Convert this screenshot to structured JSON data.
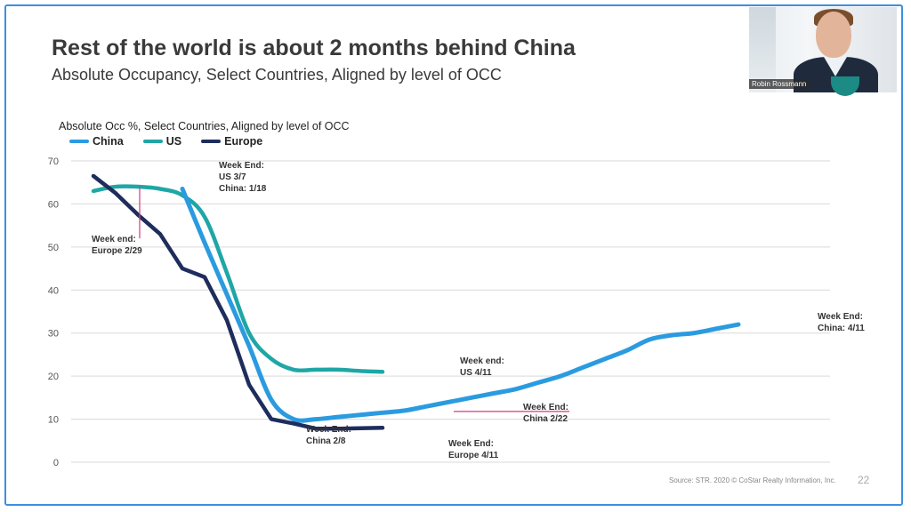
{
  "slide": {
    "title": "Rest of the world is about 2 months behind China",
    "subtitle": "Absolute Occupancy, Select Countries, Aligned by level of OCC",
    "source": "Source: STR. 2020 © CoStar Realty Information, Inc.",
    "page_number": "22"
  },
  "webcam": {
    "name": "Robin Rossmann"
  },
  "colors": {
    "china": "#2b9be0",
    "us": "#1fa6a6",
    "europe": "#1e2d5c",
    "marker": "#d63a7d",
    "axis_text": "#555555",
    "grid": "#d9d9d9"
  },
  "chart_data": {
    "type": "line",
    "title": "Absolute Occ %, Select Countries, Aligned by level of OCC",
    "xlabel": "",
    "ylabel": "",
    "ylim": [
      0,
      70
    ],
    "y_ticks": [
      "0",
      "10",
      "20",
      "30",
      "40",
      "50",
      "60",
      "70"
    ],
    "grid": "horizontal",
    "legend_position": "top-left",
    "x_range": [
      0,
      33
    ],
    "series": [
      {
        "name": "China",
        "x": [
          4,
          5,
          6,
          7,
          8,
          9,
          10,
          11,
          12,
          13,
          14,
          15,
          16,
          17,
          18,
          19,
          20,
          21,
          22,
          23,
          24,
          25,
          26,
          27,
          28,
          29,
          30,
          31,
          32
        ],
        "values": [
          63.5,
          51,
          39,
          27,
          14.5,
          10,
          10,
          10.5,
          11,
          11.5,
          12,
          13,
          14,
          15,
          16,
          17,
          18.5,
          20,
          22,
          24,
          26,
          28.5,
          29.5,
          30,
          31,
          32,
          null,
          null,
          null
        ]
      },
      {
        "name": "US",
        "x": [
          0,
          1,
          2,
          3,
          4,
          5,
          6,
          7,
          8,
          9,
          10,
          11,
          12,
          13,
          14
        ],
        "values": [
          63,
          64,
          64,
          63.5,
          62,
          57,
          44,
          30,
          24,
          21.5,
          21.5,
          21.5,
          21.2,
          21,
          null
        ]
      },
      {
        "name": "Europe",
        "x": [
          0,
          1,
          2,
          3,
          4,
          5,
          6,
          7,
          8,
          9,
          10,
          11,
          12,
          13
        ],
        "values": [
          66.5,
          62.5,
          57.5,
          53,
          45,
          43,
          33,
          18,
          10,
          9,
          7.8,
          7.8,
          7.9,
          8
        ]
      }
    ],
    "annotations": [
      {
        "label_lines": [
          "Week end:",
          "Europe  2/29"
        ]
      },
      {
        "label_lines": [
          "Week End:",
          "US 3/7",
          "China: 1/18"
        ]
      },
      {
        "label_lines": [
          "Week End:",
          "China 2/8"
        ]
      },
      {
        "label_lines": [
          "Week end:",
          "US 4/11"
        ]
      },
      {
        "label_lines": [
          "Week End:",
          "China 2/22"
        ]
      },
      {
        "label_lines": [
          "Week End:",
          "Europe 4/11"
        ]
      },
      {
        "label_lines": [
          "Week End:",
          "China: 4/11"
        ]
      }
    ]
  }
}
